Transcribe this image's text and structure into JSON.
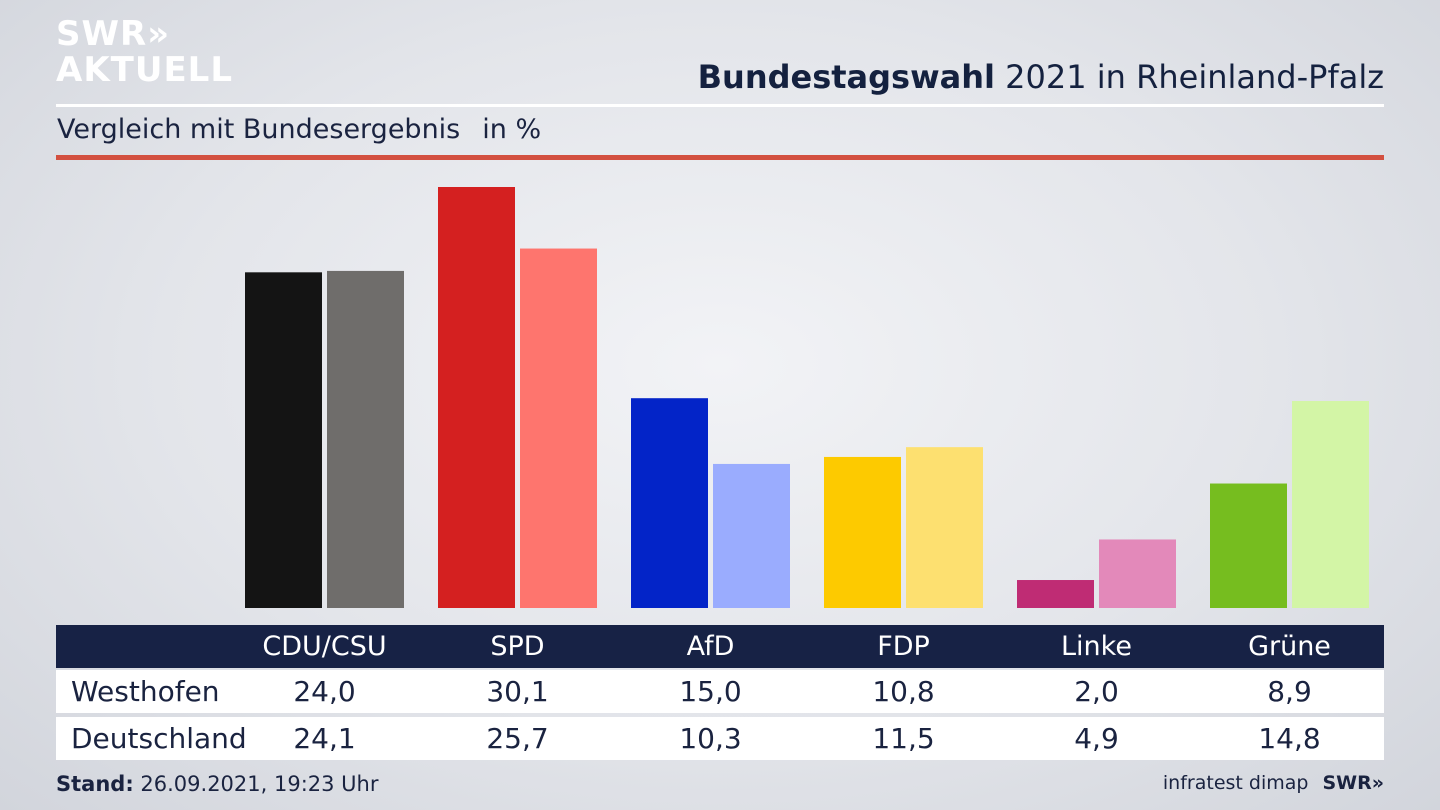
{
  "logo": {
    "line1": "SWR»",
    "line2": "AKTUELL"
  },
  "header": {
    "title_bold": "Bundestagswahl",
    "title_rest": " 2021 in Rheinland-Pfalz",
    "subtitle": "Vergleich mit Bundesergebnis",
    "unit": "in %"
  },
  "chart_data": {
    "type": "bar",
    "categories": [
      "CDU/CSU",
      "SPD",
      "AfD",
      "FDP",
      "Linke",
      "Grüne"
    ],
    "series": [
      {
        "name": "Westhofen",
        "values": [
          24.0,
          30.1,
          15.0,
          10.8,
          2.0,
          8.9
        ],
        "colors": [
          "#141414",
          "#d42020",
          "#0324c8",
          "#fdca00",
          "#bf2c74",
          "#76bd1f"
        ]
      },
      {
        "name": "Deutschland",
        "values": [
          24.1,
          25.7,
          10.3,
          11.5,
          4.9,
          14.8
        ],
        "colors": [
          "#6f6d6b",
          "#fe756e",
          "#9aacfe",
          "#fde070",
          "#e389ba",
          "#d3f5a6"
        ]
      }
    ],
    "ylim": [
      0,
      30.1
    ]
  },
  "table": {
    "headers": [
      "CDU/CSU",
      "SPD",
      "AfD",
      "FDP",
      "Linke",
      "Grüne"
    ],
    "rows": [
      {
        "label": "Westhofen",
        "values": [
          "24,0",
          "30,1",
          "15,0",
          "10,8",
          "2,0",
          "8,9"
        ]
      },
      {
        "label": "Deutschland",
        "values": [
          "24,1",
          "25,7",
          "10,3",
          "11,5",
          "4,9",
          "14,8"
        ]
      }
    ]
  },
  "footer": {
    "stand_label": "Stand:",
    "stand_value": " 26.09.2021, 19:23 Uhr",
    "source": "infratest dimap",
    "brand": "SWR»"
  }
}
